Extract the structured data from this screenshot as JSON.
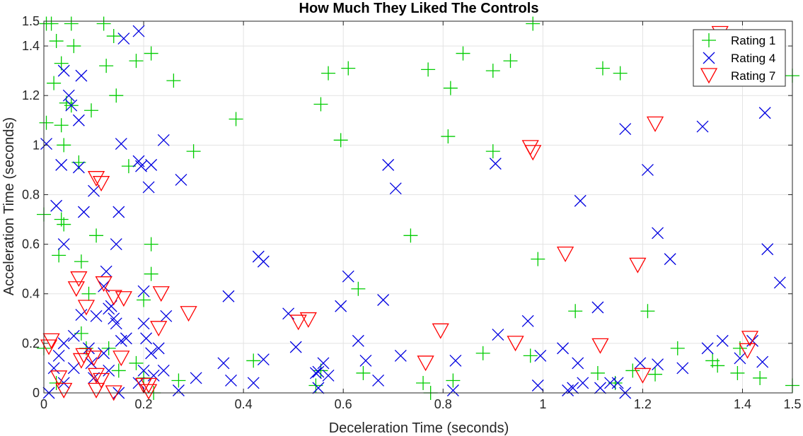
{
  "chart_data": {
    "type": "scatter",
    "title": "How Much They Liked The Controls",
    "xlabel": "Deceleration Time (seconds)",
    "ylabel": "Acceleration Time (seconds)",
    "xlim": [
      0,
      1.5
    ],
    "ylim": [
      0,
      1.5
    ],
    "x_ticks": [
      "0",
      "0.2",
      "0.4",
      "0.6",
      "0.8",
      "1",
      "1.2",
      "1.4",
      "1.5"
    ],
    "x_tick_values": [
      0,
      0.2,
      0.4,
      0.6,
      0.8,
      1.0,
      1.2,
      1.4,
      1.5
    ],
    "y_ticks": [
      "0",
      "0.2",
      "0.4",
      "0.6",
      "0.8",
      "1",
      "1.2",
      "1.4",
      "1.5"
    ],
    "y_tick_values": [
      0,
      0.2,
      0.4,
      0.6,
      0.8,
      1.0,
      1.2,
      1.4,
      1.5
    ],
    "grid": true,
    "legend_position": "top-right",
    "series": [
      {
        "name": "Rating 1",
        "color": "#00cc00",
        "marker": "plus",
        "points": [
          [
            0.005,
            1.49
          ],
          [
            0.015,
            1.49
          ],
          [
            0.055,
            1.49
          ],
          [
            0.12,
            1.49
          ],
          [
            0.14,
            1.44
          ],
          [
            0.025,
            1.42
          ],
          [
            0.06,
            1.4
          ],
          [
            0.215,
            1.37
          ],
          [
            0.185,
            1.34
          ],
          [
            0.125,
            1.32
          ],
          [
            0.035,
            1.33
          ],
          [
            0.02,
            1.25
          ],
          [
            0.26,
            1.26
          ],
          [
            0.145,
            1.2
          ],
          [
            0.045,
            1.17
          ],
          [
            0.055,
            1.16
          ],
          [
            0.095,
            1.14
          ],
          [
            0.005,
            1.09
          ],
          [
            0.035,
            1.08
          ],
          [
            0.04,
            1.0
          ],
          [
            0.07,
            0.93
          ],
          [
            0.17,
            0.915
          ],
          [
            0.3,
            0.975
          ],
          [
            0.385,
            1.105
          ],
          [
            0.0,
            0.72
          ],
          [
            0.035,
            0.7
          ],
          [
            0.04,
            0.68
          ],
          [
            0.105,
            0.635
          ],
          [
            0.215,
            0.6
          ],
          [
            0.03,
            0.555
          ],
          [
            0.075,
            0.53
          ],
          [
            0.215,
            0.48
          ],
          [
            0.2,
            0.375
          ],
          [
            0.09,
            0.4
          ],
          [
            0.075,
            0.24
          ],
          [
            0.085,
            0.18
          ],
          [
            0.13,
            0.18
          ],
          [
            0.0,
            0.18
          ],
          [
            0.15,
            0.09
          ],
          [
            0.185,
            0.12
          ],
          [
            0.2,
            0.06
          ],
          [
            0.22,
            0.0
          ],
          [
            0.025,
            0.04
          ],
          [
            0.27,
            0.05
          ],
          [
            0.42,
            0.13
          ],
          [
            0.545,
            0.03
          ],
          [
            0.555,
            0.09
          ],
          [
            0.64,
            0.08
          ],
          [
            0.63,
            0.42
          ],
          [
            0.555,
            1.165
          ],
          [
            0.57,
            1.29
          ],
          [
            0.61,
            1.31
          ],
          [
            0.595,
            1.02
          ],
          [
            0.735,
            0.635
          ],
          [
            0.77,
            1.305
          ],
          [
            0.775,
            0.0
          ],
          [
            0.815,
            1.23
          ],
          [
            0.84,
            1.37
          ],
          [
            0.82,
            0.05
          ],
          [
            0.81,
            1.035
          ],
          [
            0.9,
            1.3
          ],
          [
            0.935,
            1.34
          ],
          [
            0.88,
            0.16
          ],
          [
            0.9,
            0.975
          ],
          [
            0.98,
            1.49
          ],
          [
            0.975,
            0.15
          ],
          [
            0.99,
            0.54
          ],
          [
            1.065,
            0.33
          ],
          [
            1.11,
            0.08
          ],
          [
            1.12,
            1.31
          ],
          [
            1.155,
            1.29
          ],
          [
            1.145,
            0.04
          ],
          [
            1.18,
            0.09
          ],
          [
            1.21,
            0.33
          ],
          [
            1.225,
            0.075
          ],
          [
            1.27,
            0.18
          ],
          [
            1.34,
            0.13
          ],
          [
            1.35,
            0.11
          ],
          [
            1.39,
            0.08
          ],
          [
            1.395,
            0.18
          ],
          [
            1.435,
            0.06
          ],
          [
            1.5,
            0.03
          ],
          [
            1.5,
            1.28
          ],
          [
            0.76,
            0.04
          ]
        ]
      },
      {
        "name": "Rating 4",
        "color": "#0000e0",
        "marker": "x",
        "points": [
          [
            0.19,
            1.46
          ],
          [
            0.16,
            1.43
          ],
          [
            0.04,
            1.3
          ],
          [
            0.075,
            1.28
          ],
          [
            0.05,
            1.2
          ],
          [
            0.055,
            1.16
          ],
          [
            0.07,
            1.1
          ],
          [
            0.005,
            1.005
          ],
          [
            0.155,
            1.005
          ],
          [
            0.24,
            1.02
          ],
          [
            0.19,
            0.935
          ],
          [
            0.195,
            0.915
          ],
          [
            0.215,
            0.92
          ],
          [
            0.035,
            0.92
          ],
          [
            0.07,
            0.91
          ],
          [
            0.275,
            0.86
          ],
          [
            0.21,
            0.83
          ],
          [
            0.1,
            0.815
          ],
          [
            0.025,
            0.755
          ],
          [
            0.08,
            0.73
          ],
          [
            0.15,
            0.73
          ],
          [
            0.04,
            0.6
          ],
          [
            0.145,
            0.6
          ],
          [
            0.125,
            0.49
          ],
          [
            0.12,
            0.43
          ],
          [
            0.2,
            0.41
          ],
          [
            0.135,
            0.35
          ],
          [
            0.075,
            0.315
          ],
          [
            0.105,
            0.31
          ],
          [
            0.14,
            0.3
          ],
          [
            0.145,
            0.28
          ],
          [
            0.2,
            0.28
          ],
          [
            0.245,
            0.31
          ],
          [
            0.165,
            0.22
          ],
          [
            0.155,
            0.21
          ],
          [
            0.205,
            0.22
          ],
          [
            0.06,
            0.23
          ],
          [
            0.12,
            0.16
          ],
          [
            0.03,
            0.15
          ],
          [
            0.04,
            0.2
          ],
          [
            0.09,
            0.18
          ],
          [
            0.095,
            0.12
          ],
          [
            0.06,
            0.1
          ],
          [
            0.02,
            0.1
          ],
          [
            0.04,
            0.04
          ],
          [
            0.01,
            0.0
          ],
          [
            0.1,
            0.06
          ],
          [
            0.13,
            0.09
          ],
          [
            0.15,
            0.0
          ],
          [
            0.19,
            0.04
          ],
          [
            0.2,
            0.09
          ],
          [
            0.215,
            0.16
          ],
          [
            0.23,
            0.18
          ],
          [
            0.22,
            0.07
          ],
          [
            0.24,
            0.09
          ],
          [
            0.27,
            0.01
          ],
          [
            0.305,
            0.06
          ],
          [
            0.36,
            0.12
          ],
          [
            0.37,
            0.39
          ],
          [
            0.375,
            0.05
          ],
          [
            0.42,
            0.04
          ],
          [
            0.43,
            0.55
          ],
          [
            0.44,
            0.53
          ],
          [
            0.44,
            0.135
          ],
          [
            0.49,
            0.32
          ],
          [
            0.505,
            0.185
          ],
          [
            0.545,
            0.08
          ],
          [
            0.55,
            0.02
          ],
          [
            0.56,
            0.12
          ],
          [
            0.57,
            0.07
          ],
          [
            0.595,
            0.35
          ],
          [
            0.61,
            0.47
          ],
          [
            0.63,
            0.21
          ],
          [
            0.645,
            0.13
          ],
          [
            0.67,
            0.05
          ],
          [
            0.68,
            0.375
          ],
          [
            0.69,
            0.92
          ],
          [
            0.705,
            0.825
          ],
          [
            0.715,
            0.15
          ],
          [
            0.82,
            0.01
          ],
          [
            0.825,
            0.13
          ],
          [
            0.905,
            0.925
          ],
          [
            0.91,
            0.235
          ],
          [
            0.97,
            0.29
          ],
          [
            0.99,
            0.03
          ],
          [
            0.995,
            0.15
          ],
          [
            1.04,
            0.18
          ],
          [
            1.05,
            0.01
          ],
          [
            1.06,
            0.02
          ],
          [
            1.07,
            0.12
          ],
          [
            1.08,
            0.04
          ],
          [
            1.075,
            0.775
          ],
          [
            1.11,
            0.345
          ],
          [
            1.115,
            0.02
          ],
          [
            1.135,
            0.04
          ],
          [
            1.15,
            0.04
          ],
          [
            1.165,
            1.065
          ],
          [
            1.195,
            0.12
          ],
          [
            1.21,
            0.9
          ],
          [
            1.23,
            0.645
          ],
          [
            1.23,
            0.115
          ],
          [
            1.255,
            0.54
          ],
          [
            1.28,
            0.1
          ],
          [
            1.32,
            1.075
          ],
          [
            1.33,
            0.18
          ],
          [
            1.36,
            0.21
          ],
          [
            1.395,
            0.14
          ],
          [
            1.42,
            0.21
          ],
          [
            1.44,
            0.125
          ],
          [
            1.445,
            1.13
          ],
          [
            1.45,
            0.58
          ],
          [
            1.475,
            0.445
          ],
          [
            1.165,
            0.0
          ],
          [
            0.55,
            0.085
          ],
          [
            0.13,
            0.34
          ]
        ]
      },
      {
        "name": "Rating 7",
        "color": "#ff0000",
        "marker": "triangle-down",
        "points": [
          [
            0.105,
            0.865
          ],
          [
            0.115,
            0.845
          ],
          [
            0.07,
            0.46
          ],
          [
            0.065,
            0.42
          ],
          [
            0.085,
            0.345
          ],
          [
            0.12,
            0.44
          ],
          [
            0.14,
            0.385
          ],
          [
            0.16,
            0.38
          ],
          [
            0.235,
            0.4
          ],
          [
            0.29,
            0.32
          ],
          [
            0.23,
            0.26
          ],
          [
            0.015,
            0.21
          ],
          [
            0.01,
            0.185
          ],
          [
            0.03,
            0.06
          ],
          [
            0.04,
            0.01
          ],
          [
            0.08,
            0.15
          ],
          [
            0.1,
            0.14
          ],
          [
            0.075,
            0.13
          ],
          [
            0.105,
            0.07
          ],
          [
            0.115,
            0.05
          ],
          [
            0.105,
            0.01
          ],
          [
            0.14,
            0.0
          ],
          [
            0.155,
            0.14
          ],
          [
            0.2,
            0.03
          ],
          [
            0.21,
            0.03
          ],
          [
            0.21,
            0.005
          ],
          [
            0.51,
            0.285
          ],
          [
            0.53,
            0.295
          ],
          [
            0.795,
            0.25
          ],
          [
            0.765,
            0.12
          ],
          [
            0.945,
            0.2
          ],
          [
            0.975,
            0.99
          ],
          [
            0.98,
            0.97
          ],
          [
            1.045,
            0.56
          ],
          [
            1.115,
            0.19
          ],
          [
            1.19,
            0.515
          ],
          [
            1.225,
            1.085
          ],
          [
            1.2,
            0.07
          ],
          [
            1.415,
            0.22
          ],
          [
            1.41,
            0.17
          ],
          [
            1.355,
            1.45
          ]
        ]
      }
    ]
  }
}
